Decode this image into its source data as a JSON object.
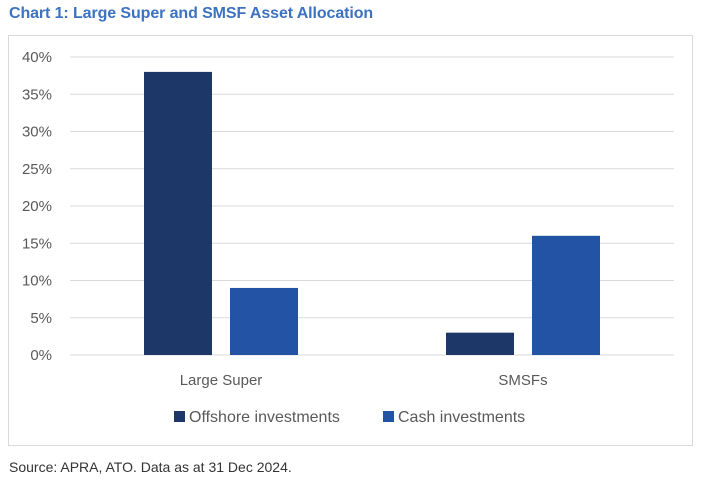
{
  "title": "Chart 1: Large Super and SMSF Asset Allocation",
  "source": "Source: APRA, ATO. Data as at 31 Dec 2024.",
  "colors": {
    "title": "#3d72c0",
    "offshore": "#1d3768",
    "cash": "#2253a5",
    "grid": "#d9d9d9",
    "axis_text": "#595959"
  },
  "chart_data": {
    "type": "bar",
    "title": "Chart 1: Large Super and SMSF Asset Allocation",
    "categories": [
      "Large Super",
      "SMSFs"
    ],
    "series": [
      {
        "name": "Offshore investments",
        "values": [
          38,
          3
        ],
        "color": "#1d3768"
      },
      {
        "name": "Cash investments",
        "values": [
          9,
          16
        ],
        "color": "#2253a5"
      }
    ],
    "xlabel": "",
    "ylabel": "",
    "ylim": [
      0,
      40
    ],
    "yticks": [
      0,
      5,
      10,
      15,
      20,
      25,
      30,
      35,
      40
    ],
    "ytick_labels": [
      "0%",
      "5%",
      "10%",
      "15%",
      "20%",
      "25%",
      "30%",
      "35%",
      "40%"
    ],
    "grid": true,
    "legend": "bottom"
  }
}
